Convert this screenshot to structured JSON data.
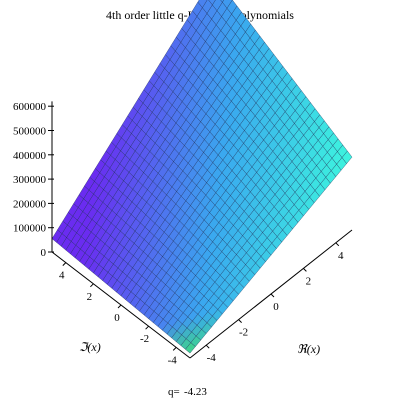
{
  "chart_data": {
    "type": "surface",
    "title": "4th order  little  q-Laguerre Polynomials",
    "xlabel": "ℜ(x)",
    "ylabel": "ℑ(x)",
    "zlabel": "",
    "xlim": [
      -5,
      5
    ],
    "ylim": [
      -5,
      5
    ],
    "zlim": [
      0,
      620000
    ],
    "x_ticks": [
      "-4",
      "-2",
      "0",
      "2",
      "4"
    ],
    "y_ticks": [
      "-4",
      "-2",
      "0",
      "2",
      "4"
    ],
    "z_ticks": [
      "0",
      "100000",
      "200000",
      "300000",
      "400000",
      "500000",
      "600000"
    ],
    "z_tick_values": [
      0,
      100000,
      200000,
      300000,
      400000,
      500000,
      600000
    ],
    "corner_values": {
      "re_min_im_min": 20000,
      "re_max_im_min": 300000,
      "re_min_im_max": 55000,
      "re_max_im_max": 610000
    },
    "grid_resolution": 30,
    "colors": {
      "low": "#6a2cf0",
      "mid": "#3aa8ef",
      "high": "#3df5de",
      "edge": "#40e070",
      "mesh": "#1a2a55"
    },
    "footer": {
      "parameter_label": "q=",
      "parameter_value": "-4.23"
    }
  }
}
